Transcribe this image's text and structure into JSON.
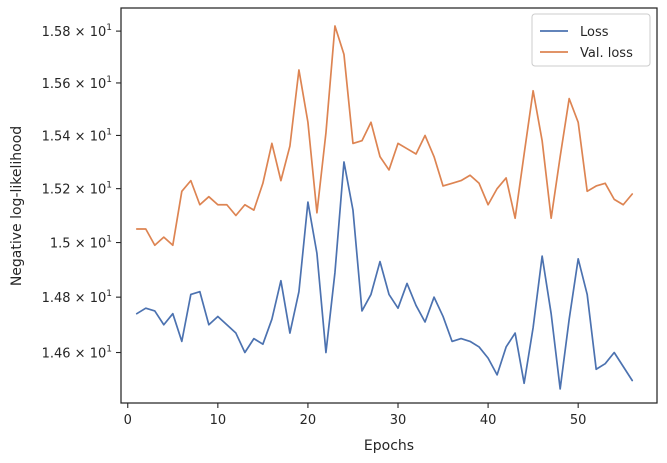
{
  "chart_data": {
    "type": "line",
    "xlabel": "Epochs",
    "ylabel": "Negative log-likelihood",
    "xlim": [
      -0.75,
      58.75
    ],
    "ylim": [
      14.42,
      15.89
    ],
    "yscale": "log",
    "xticks": [
      0,
      10,
      20,
      30,
      40,
      50
    ],
    "yticks": [
      {
        "value": 14.6,
        "mantissa": "1.46",
        "base": "10",
        "exp": "1"
      },
      {
        "value": 14.8,
        "mantissa": "1.48",
        "base": "10",
        "exp": "1"
      },
      {
        "value": 15.0,
        "mantissa": "1.5",
        "base": "10",
        "exp": "1"
      },
      {
        "value": 15.2,
        "mantissa": "1.52",
        "base": "10",
        "exp": "1"
      },
      {
        "value": 15.4,
        "mantissa": "1.54",
        "base": "10",
        "exp": "1"
      },
      {
        "value": 15.6,
        "mantissa": "1.56",
        "base": "10",
        "exp": "1"
      },
      {
        "value": 15.8,
        "mantissa": "1.58",
        "base": "10",
        "exp": "1"
      }
    ],
    "grid": false,
    "legend_position": "top-right",
    "x": [
      1,
      2,
      3,
      4,
      5,
      6,
      7,
      8,
      9,
      10,
      11,
      12,
      13,
      14,
      15,
      16,
      17,
      18,
      19,
      20,
      21,
      22,
      23,
      24,
      25,
      26,
      27,
      28,
      29,
      30,
      31,
      32,
      33,
      34,
      35,
      36,
      37,
      38,
      39,
      40,
      41,
      42,
      43,
      44,
      45,
      46,
      47,
      48,
      49,
      50,
      51,
      52,
      53,
      54,
      55,
      56
    ],
    "series": [
      {
        "name": "Loss",
        "color": "#4c72b0",
        "values": [
          14.74,
          14.76,
          14.75,
          14.7,
          14.74,
          14.64,
          14.81,
          14.82,
          14.7,
          14.73,
          14.7,
          14.67,
          14.6,
          14.65,
          14.63,
          14.72,
          14.86,
          14.67,
          14.82,
          15.15,
          14.96,
          14.6,
          14.89,
          15.3,
          15.12,
          14.75,
          14.81,
          14.93,
          14.81,
          14.76,
          14.85,
          14.77,
          14.71,
          14.8,
          14.73,
          14.64,
          14.65,
          14.64,
          14.62,
          14.58,
          14.52,
          14.62,
          14.67,
          14.49,
          14.69,
          14.95,
          14.74,
          14.47,
          14.72,
          14.94,
          14.81,
          14.54,
          14.56,
          14.6,
          14.55,
          14.5
        ]
      },
      {
        "name": "Val. loss",
        "color": "#dd8452",
        "values": [
          15.05,
          15.05,
          14.99,
          15.02,
          14.99,
          15.19,
          15.23,
          15.14,
          15.17,
          15.14,
          15.14,
          15.1,
          15.14,
          15.12,
          15.22,
          15.37,
          15.23,
          15.36,
          15.65,
          15.45,
          15.11,
          15.41,
          15.82,
          15.71,
          15.37,
          15.38,
          15.45,
          15.32,
          15.27,
          15.37,
          15.35,
          15.33,
          15.4,
          15.32,
          15.21,
          15.22,
          15.23,
          15.25,
          15.22,
          15.14,
          15.2,
          15.24,
          15.09,
          15.33,
          15.57,
          15.38,
          15.09,
          15.32,
          15.54,
          15.45,
          15.19,
          15.21,
          15.22,
          15.16,
          15.14,
          15.18
        ]
      }
    ]
  }
}
